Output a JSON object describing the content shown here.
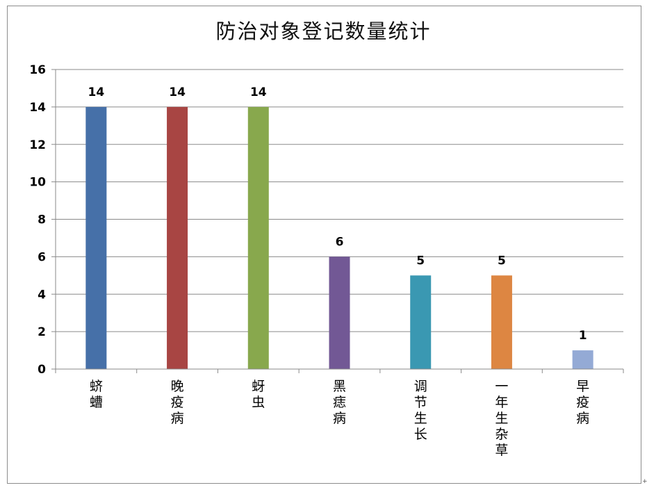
{
  "chart_data": {
    "type": "bar",
    "title": "防治对象登记数量统计",
    "categories": [
      "蛴螬",
      "晚疫病",
      "蚜虫",
      "黑痣病",
      "调节生长",
      "一年生杂草",
      "早疫病"
    ],
    "values": [
      14,
      14,
      14,
      6,
      5,
      5,
      1
    ],
    "colors": [
      "#4670a8",
      "#a84543",
      "#88a84d",
      "#725895",
      "#3a98b2",
      "#dd8642",
      "#94aad5"
    ],
    "ylim": [
      0,
      16
    ],
    "yticks": [
      0,
      2,
      4,
      6,
      8,
      10,
      12,
      14,
      16
    ],
    "grid": true,
    "legend": "none",
    "data_labels": true
  },
  "corner_mark": "+"
}
